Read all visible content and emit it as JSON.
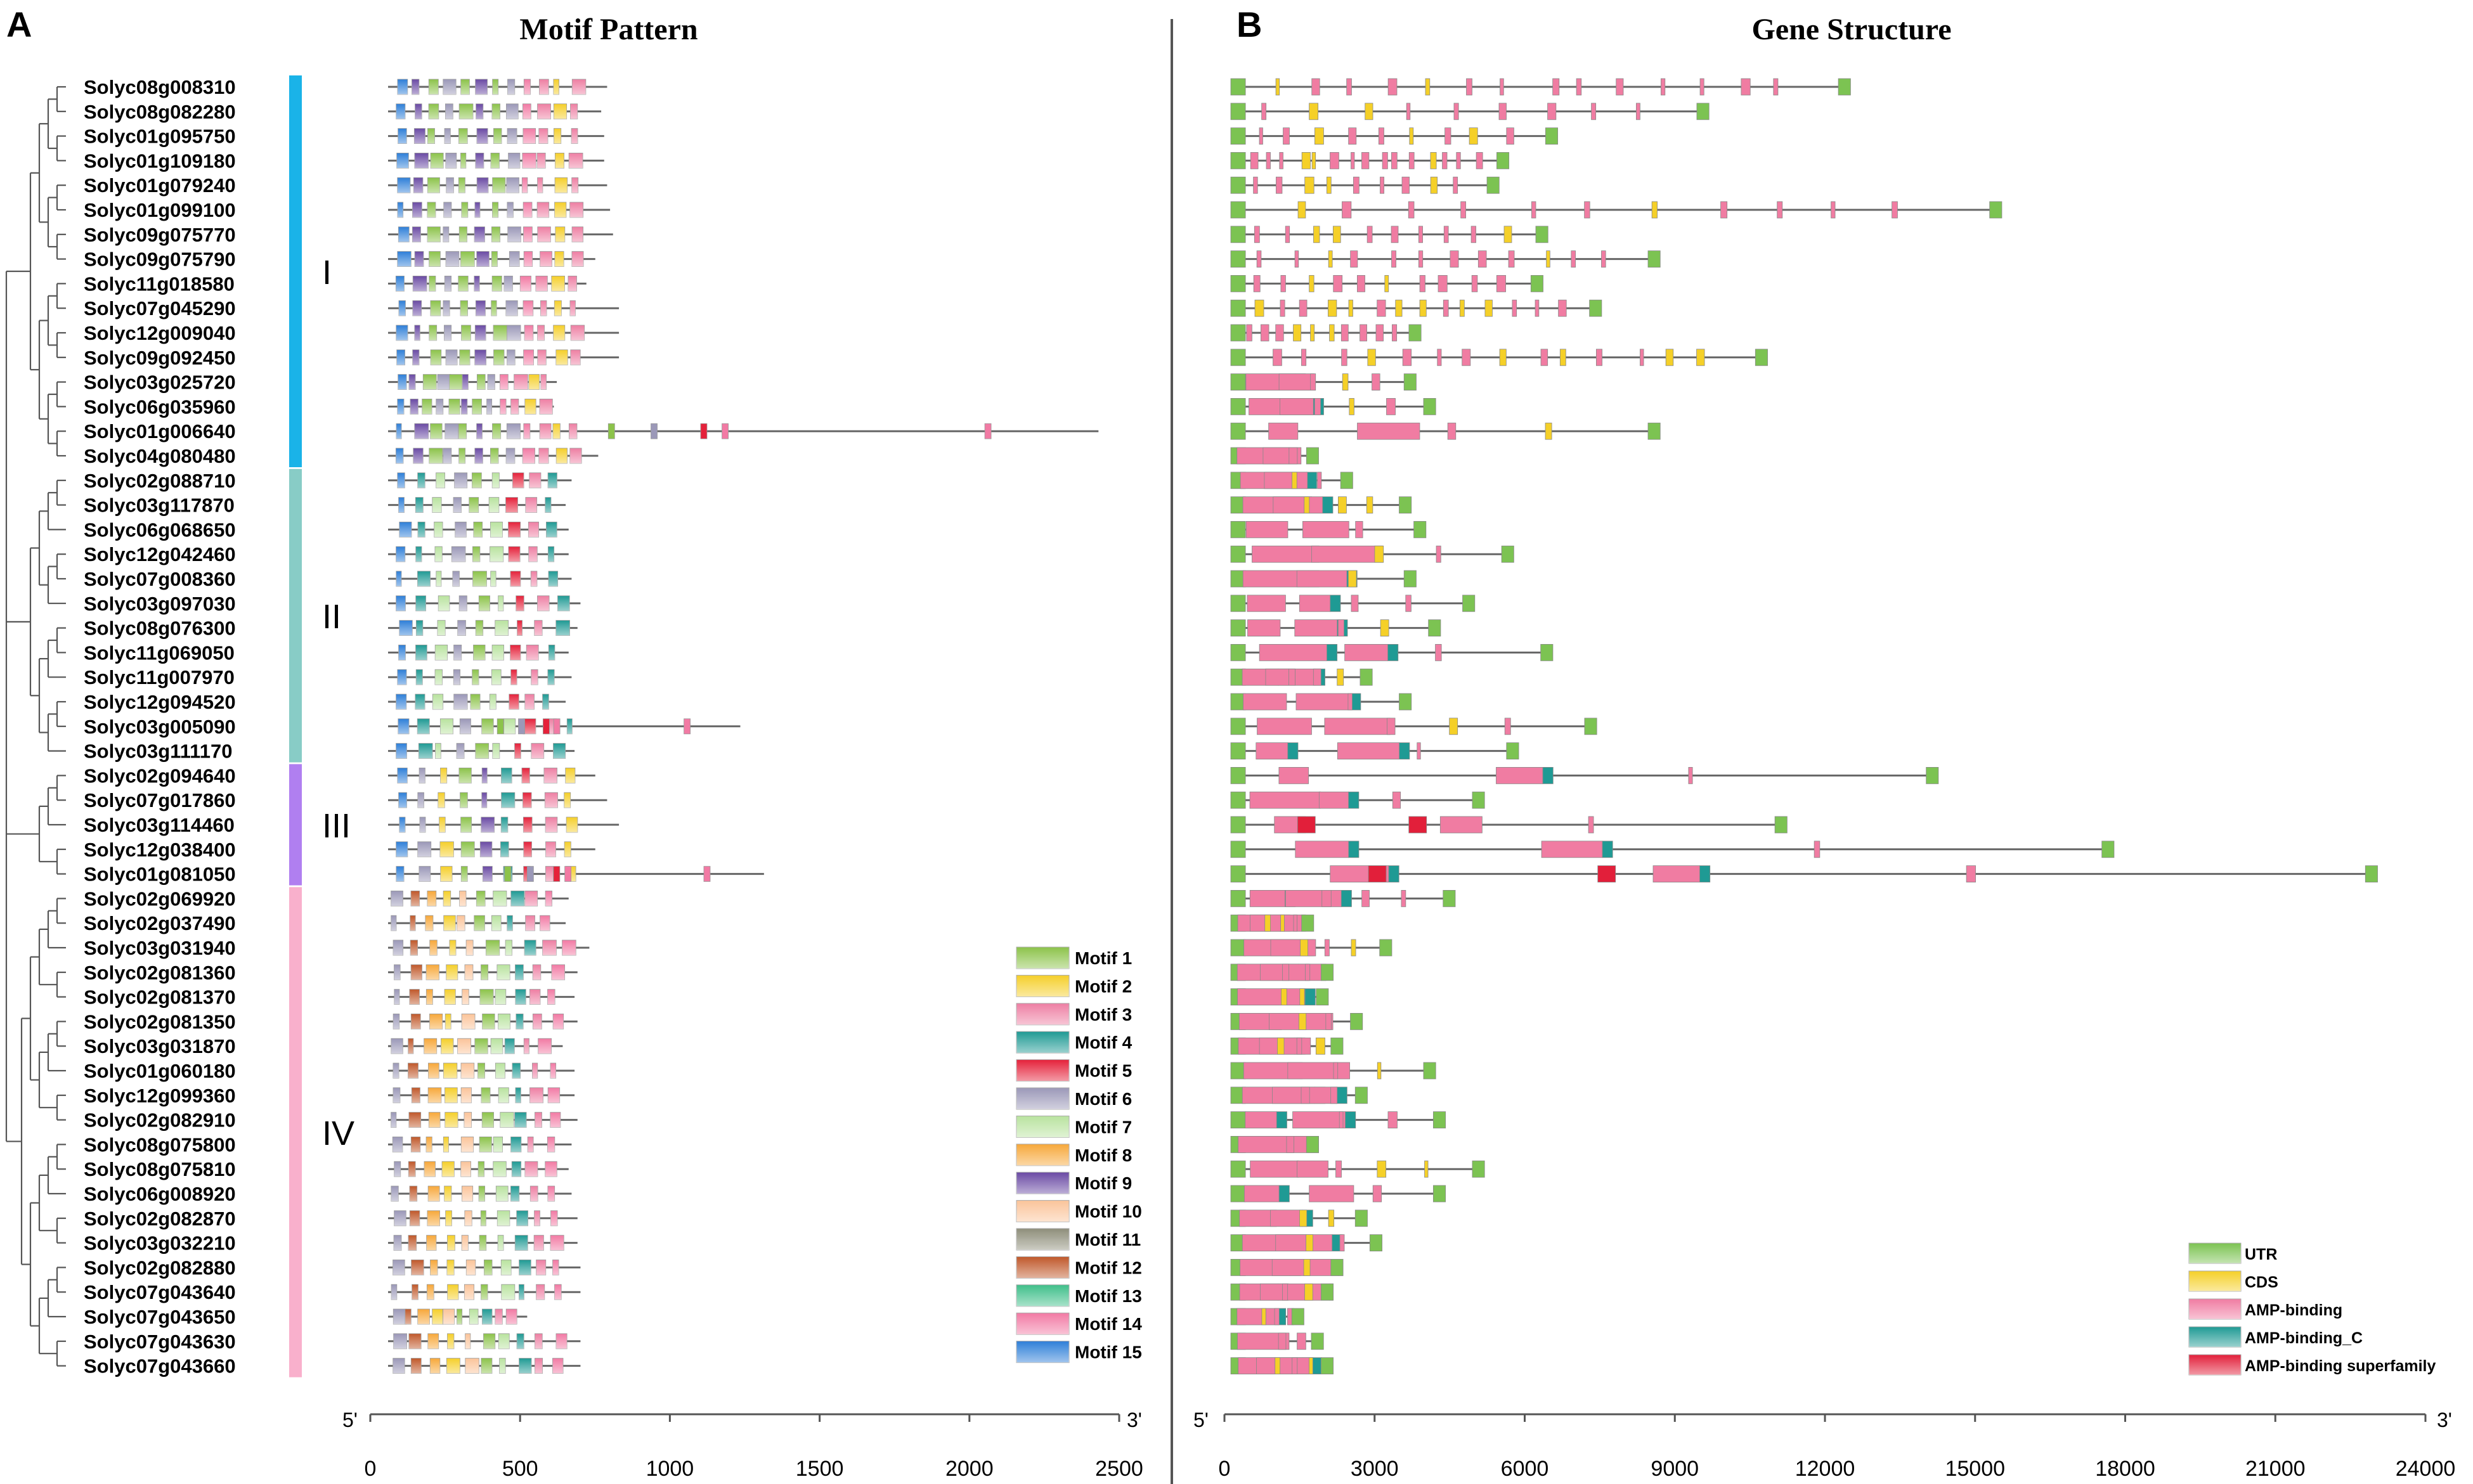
{
  "panelA": {
    "letter": "A",
    "title": "Motif Pattern"
  },
  "panelB": {
    "letter": "B",
    "title": "Gene Structure"
  },
  "genes": [
    "Solyc08g008310",
    "Solyc08g082280",
    "Solyc01g095750",
    "Solyc01g109180",
    "Solyc01g079240",
    "Solyc01g099100",
    "Solyc09g075770",
    "Solyc09g075790",
    "Solyc11g018580",
    "Solyc07g045290",
    "Solyc12g009040",
    "Solyc09g092450",
    "Solyc03g025720",
    "Solyc06g035960",
    "Solyc01g006640",
    "Solyc04g080480",
    "Solyc02g088710",
    "Solyc03g117870",
    "Solyc06g068650",
    "Solyc12g042460",
    "Solyc07g008360",
    "Solyc03g097030",
    "Solyc08g076300",
    "Solyc11g069050",
    "Solyc11g007970",
    "Solyc12g094520",
    "Solyc03g005090",
    "Solyc03g111170",
    "Solyc02g094640",
    "Solyc07g017860",
    "Solyc03g114460",
    "Solyc12g038400",
    "Solyc01g081050",
    "Solyc02g069920",
    "Solyc02g037490",
    "Solyc03g031940",
    "Solyc02g081360",
    "Solyc02g081370",
    "Solyc02g081350",
    "Solyc03g031870",
    "Solyc01g060180",
    "Solyc12g099360",
    "Solyc02g082910",
    "Solyc08g075800",
    "Solyc08g075810",
    "Solyc06g008920",
    "Solyc02g082870",
    "Solyc03g032210",
    "Solyc02g082880",
    "Solyc07g043640",
    "Solyc07g043650",
    "Solyc07g043630",
    "Solyc07g043660"
  ],
  "groups": [
    {
      "label": "I",
      "color": "#1ab3e8",
      "from": 0,
      "to": 15
    },
    {
      "label": "II",
      "color": "#88ccc6",
      "from": 16,
      "to": 27
    },
    {
      "label": "III",
      "color": "#b07ff0",
      "from": 28,
      "to": 32
    },
    {
      "label": "IV",
      "color": "#f9b0cc",
      "from": 33,
      "to": 52
    }
  ],
  "motif_axis": {
    "ticks": [
      0,
      500,
      1000,
      1500,
      2000,
      2500
    ],
    "five_prime": "5'",
    "three_prime": "3'",
    "max": 2500
  },
  "gene_axis": {
    "ticks": [
      0,
      3000,
      6000,
      9000,
      12000,
      15000,
      18000,
      21000,
      24000
    ],
    "five_prime": "5'",
    "three_prime": "3'",
    "max": 24000
  },
  "motif_legend": [
    {
      "label": "Motif 1",
      "color": "#8cc34a"
    },
    {
      "label": "Motif 2",
      "color": "#f5cf2a"
    },
    {
      "label": "Motif 3",
      "color": "#ee7fa3"
    },
    {
      "label": "Motif 4",
      "color": "#1f9a94"
    },
    {
      "label": "Motif 5",
      "color": "#e5213a"
    },
    {
      "label": "Motif 6",
      "color": "#9b98b8"
    },
    {
      "label": "Motif 7",
      "color": "#b9e39f"
    },
    {
      "label": "Motif 8",
      "color": "#f7a83a"
    },
    {
      "label": "Motif 9",
      "color": "#6a4aa4"
    },
    {
      "label": "Motif 10",
      "color": "#fbc49a"
    },
    {
      "label": "Motif 11",
      "color": "#8e8e7a"
    },
    {
      "label": "Motif 12",
      "color": "#c0582a"
    },
    {
      "label": "Motif 13",
      "color": "#3fbf8a"
    },
    {
      "label": "Motif 14",
      "color": "#f27aa4"
    },
    {
      "label": "Motif 15",
      "color": "#2e7fd8"
    }
  ],
  "gene_legend": [
    {
      "label": "UTR",
      "color": "#7cc352"
    },
    {
      "label": "CDS",
      "color": "#f5d028"
    },
    {
      "label": "AMP-binding",
      "color": "#f07ca2"
    },
    {
      "label": "AMP-binding_C",
      "color": "#1f9a94"
    },
    {
      "label": "AMP-binding superfamily",
      "color": "#e21f3a"
    }
  ],
  "protein_lengths": [
    740,
    720,
    730,
    730,
    740,
    750,
    760,
    700,
    670,
    780,
    780,
    780,
    570,
    560,
    2400,
    710,
    620,
    600,
    610,
    610,
    620,
    650,
    640,
    610,
    620,
    600,
    1190,
    630,
    700,
    740,
    780,
    700,
    1270,
    610,
    600,
    680,
    640,
    630,
    640,
    590,
    630,
    630,
    640,
    620,
    610,
    620,
    640,
    640,
    650,
    650,
    470,
    650,
    650
  ],
  "gene_lengths": [
    12700,
    9800,
    6700,
    5700,
    5500,
    15800,
    6500,
    8800,
    6400,
    7600,
    3900,
    11000,
    3800,
    4200,
    8800,
    1800,
    2500,
    3700,
    4000,
    5800,
    3800,
    5000,
    4300,
    6600,
    2900,
    3700,
    7500,
    5900,
    14500,
    5200,
    11400,
    18100,
    23500,
    4600,
    1700,
    3300,
    2100,
    2000,
    2700,
    2300,
    4200,
    2800,
    4400,
    1800,
    5200,
    4400,
    2800,
    3100,
    2300,
    2100,
    1500,
    1900,
    2100
  ]
}
